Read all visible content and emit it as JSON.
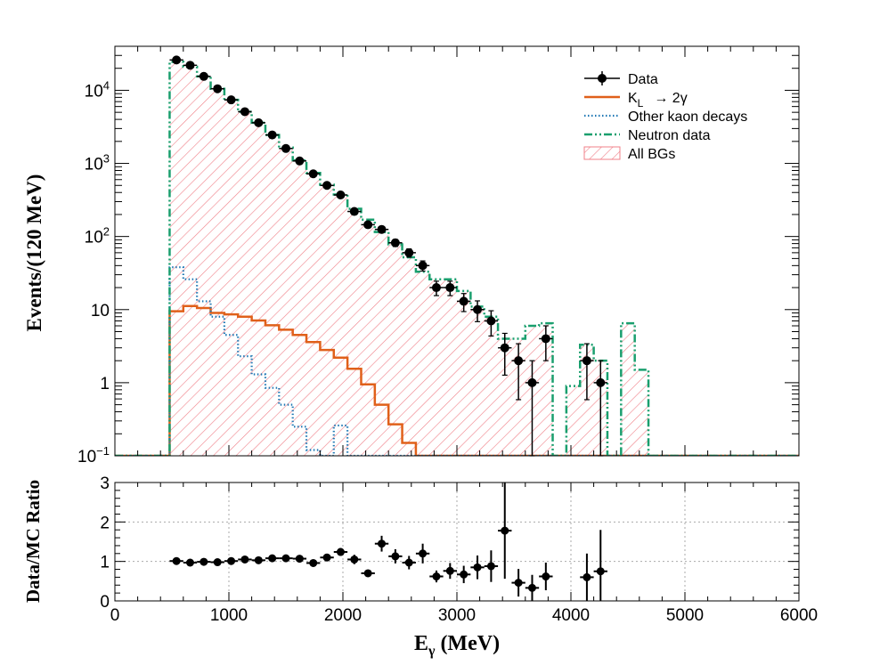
{
  "chart_data": [
    {
      "type": "line",
      "name": "main-panel",
      "yscale": "log",
      "xlim": [
        0,
        6000
      ],
      "ylim": [
        0.1,
        40000
      ],
      "ylabel": "Events/(120 MeV)",
      "yticks": [
        {
          "value": 0.1,
          "base": "10",
          "exp": "−1"
        },
        {
          "value": 1,
          "label": "1"
        },
        {
          "value": 10,
          "label": "10"
        },
        {
          "value": 100,
          "base": "10",
          "exp": "2"
        },
        {
          "value": 1000,
          "base": "10",
          "exp": "3"
        },
        {
          "value": 10000,
          "base": "10",
          "exp": "4"
        }
      ],
      "bin_edges": [
        0,
        480,
        600,
        720,
        840,
        960,
        1080,
        1200,
        1320,
        1440,
        1560,
        1680,
        1800,
        1920,
        2040,
        2160,
        2280,
        2400,
        2520,
        2640,
        2760,
        2880,
        3000,
        3120,
        3240,
        3360,
        3480,
        3600,
        3720,
        3840,
        3960,
        4080,
        4200,
        4320,
        4440,
        4560,
        4680,
        6000
      ],
      "series": [
        {
          "name": "Data",
          "style": "points",
          "color": "#000000",
          "points": [
            {
              "x": 540,
              "y": 26000
            },
            {
              "x": 660,
              "y": 22000
            },
            {
              "x": 780,
              "y": 15500
            },
            {
              "x": 900,
              "y": 10500
            },
            {
              "x": 1020,
              "y": 7400
            },
            {
              "x": 1140,
              "y": 5100
            },
            {
              "x": 1260,
              "y": 3600
            },
            {
              "x": 1380,
              "y": 2450
            },
            {
              "x": 1500,
              "y": 1600
            },
            {
              "x": 1620,
              "y": 1080
            },
            {
              "x": 1740,
              "y": 720
            },
            {
              "x": 1860,
              "y": 500
            },
            {
              "x": 1980,
              "y": 370
            },
            {
              "x": 2100,
              "y": 220
            },
            {
              "x": 2220,
              "y": 145
            },
            {
              "x": 2340,
              "y": 125
            },
            {
              "x": 2460,
              "y": 82
            },
            {
              "x": 2580,
              "y": 60
            },
            {
              "x": 2700,
              "y": 40
            },
            {
              "x": 2820,
              "y": 20
            },
            {
              "x": 2940,
              "y": 20
            },
            {
              "x": 3060,
              "y": 13
            },
            {
              "x": 3180,
              "y": 10
            },
            {
              "x": 3300,
              "y": 7
            },
            {
              "x": 3420,
              "y": 3
            },
            {
              "x": 3540,
              "y": 2
            },
            {
              "x": 3660,
              "y": 1
            },
            {
              "x": 3780,
              "y": 4
            },
            {
              "x": 4140,
              "y": 2
            },
            {
              "x": 4260,
              "y": 1
            }
          ]
        },
        {
          "name": "K_L → 2γ",
          "style": "solid",
          "color": "#e0601a",
          "values": [
            0,
            9.5,
            11.2,
            10.5,
            9,
            8.6,
            8,
            7.1,
            6.1,
            5.3,
            4.5,
            3.6,
            2.8,
            2.2,
            1.55,
            0.95,
            0.5,
            0.27,
            0.15,
            0.1,
            0,
            0,
            0,
            0,
            0,
            0,
            0,
            0,
            0,
            0,
            0,
            0,
            0,
            0,
            0,
            0,
            0
          ]
        },
        {
          "name": "Other kaon decays",
          "style": "dotted",
          "color": "#1f77b4",
          "values": [
            0,
            38,
            26,
            13,
            8,
            4.5,
            2.3,
            1.3,
            0.85,
            0.5,
            0.25,
            0.12,
            0.1,
            0.26,
            0,
            0,
            0,
            0,
            0,
            0,
            0,
            0,
            0,
            0,
            0,
            0,
            0,
            0,
            0,
            0,
            0,
            0,
            0,
            0,
            0,
            0,
            0
          ]
        },
        {
          "name": "Neutron data",
          "style": "dash-dot-dot",
          "color": "#1a9f6e",
          "values": [
            0,
            24500,
            21000,
            15500,
            10500,
            7400,
            5100,
            3600,
            2450,
            1650,
            1100,
            740,
            510,
            375,
            240,
            170,
            115,
            78,
            52,
            33,
            26,
            26,
            18,
            11,
            8,
            4,
            4,
            6,
            6.5,
            0,
            0.9,
            3.3,
            2,
            0,
            6.5,
            1.5,
            0
          ]
        },
        {
          "name": "All BGs",
          "style": "hatched",
          "color": "#f08088",
          "values": [
            0,
            24500,
            21000,
            15500,
            10500,
            7400,
            5100,
            3600,
            2450,
            1650,
            1100,
            740,
            510,
            375,
            240,
            170,
            115,
            78,
            52,
            33,
            26,
            26,
            18,
            11,
            8,
            4,
            4,
            6,
            6.5,
            0,
            0.9,
            3.3,
            2,
            0,
            6.5,
            1.5,
            0
          ]
        }
      ],
      "legend": {
        "position": "top-right",
        "entries": [
          {
            "text": "Data",
            "type": "point"
          },
          {
            "text_main": "K",
            "text_sub": "L",
            "text_rest": "→ 2γ",
            "type": "solid"
          },
          {
            "text": "Other kaon decays",
            "type": "dotted"
          },
          {
            "text": "Neutron data",
            "type": "dash-dot-dot"
          },
          {
            "text": "All BGs",
            "type": "hatched"
          }
        ]
      }
    },
    {
      "type": "scatter",
      "name": "ratio-panel",
      "xlim": [
        0,
        6000
      ],
      "ylim": [
        0,
        3
      ],
      "ylabel": "Data/MC Ratio",
      "xlabel_main": "E",
      "xlabel_sub": "γ",
      "xlabel_rest": " (MeV)",
      "grid": true,
      "xticks": [
        0,
        1000,
        2000,
        3000,
        4000,
        5000,
        6000
      ],
      "yticks": [
        0,
        1,
        2,
        3
      ],
      "points": [
        {
          "x": 540,
          "y": 1.01,
          "err": 0.03
        },
        {
          "x": 660,
          "y": 0.97,
          "err": 0.03
        },
        {
          "x": 780,
          "y": 0.99,
          "err": 0.03
        },
        {
          "x": 900,
          "y": 0.98,
          "err": 0.03
        },
        {
          "x": 1020,
          "y": 1.01,
          "err": 0.04
        },
        {
          "x": 1140,
          "y": 1.05,
          "err": 0.04
        },
        {
          "x": 1260,
          "y": 1.03,
          "err": 0.04
        },
        {
          "x": 1380,
          "y": 1.08,
          "err": 0.04
        },
        {
          "x": 1500,
          "y": 1.08,
          "err": 0.05
        },
        {
          "x": 1620,
          "y": 1.07,
          "err": 0.06
        },
        {
          "x": 1740,
          "y": 0.96,
          "err": 0.06
        },
        {
          "x": 1860,
          "y": 1.1,
          "err": 0.07
        },
        {
          "x": 1980,
          "y": 1.24,
          "err": 0.1
        },
        {
          "x": 2100,
          "y": 1.05,
          "err": 0.12
        },
        {
          "x": 2220,
          "y": 0.7,
          "err": 0.06
        },
        {
          "x": 2340,
          "y": 1.45,
          "err": 0.2
        },
        {
          "x": 2460,
          "y": 1.13,
          "err": 0.18
        },
        {
          "x": 2580,
          "y": 0.97,
          "err": 0.17
        },
        {
          "x": 2700,
          "y": 1.2,
          "err": 0.25
        },
        {
          "x": 2820,
          "y": 0.62,
          "err": 0.15
        },
        {
          "x": 2940,
          "y": 0.76,
          "err": 0.2
        },
        {
          "x": 3060,
          "y": 0.67,
          "err": 0.22
        },
        {
          "x": 3180,
          "y": 0.85,
          "err": 0.3
        },
        {
          "x": 3300,
          "y": 0.88,
          "err": 0.4
        },
        {
          "x": 3420,
          "y": 1.78,
          "err": 1.22
        },
        {
          "x": 3540,
          "y": 0.46,
          "err": 0.35
        },
        {
          "x": 3660,
          "y": 0.33,
          "err": 0.33
        },
        {
          "x": 3780,
          "y": 0.62,
          "err": 0.35
        },
        {
          "x": 4140,
          "y": 0.6,
          "err": 0.6
        },
        {
          "x": 4260,
          "y": 0.75,
          "err": 1.05
        }
      ]
    }
  ]
}
